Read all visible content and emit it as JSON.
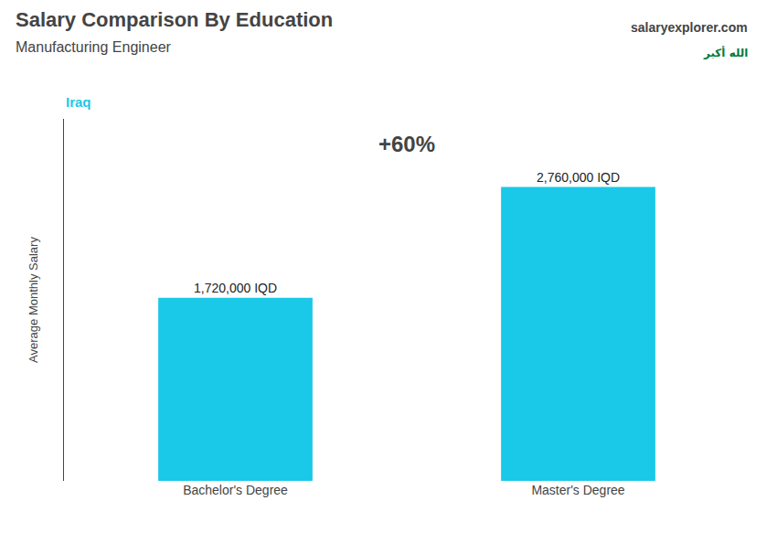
{
  "chart_data": {
    "type": "bar",
    "title": "Salary Comparison By Education",
    "subtitle": "Manufacturing Engineer",
    "annotations": [
      "Iraq",
      "+60%",
      "salaryexplorer.com",
      "الله أكبر"
    ],
    "categories": [
      "Bachelor's Degree",
      "Master's Degree"
    ],
    "values": [
      1720000,
      2760000
    ],
    "value_labels": [
      "1,720,000 IQD",
      "2,760,000 IQD"
    ],
    "data_labels": true,
    "color": "#1ac8e8",
    "ylabel": "Average Monthly Salary",
    "ylim": [
      0,
      3400000
    ],
    "grid": false,
    "tick_labels": "x"
  }
}
